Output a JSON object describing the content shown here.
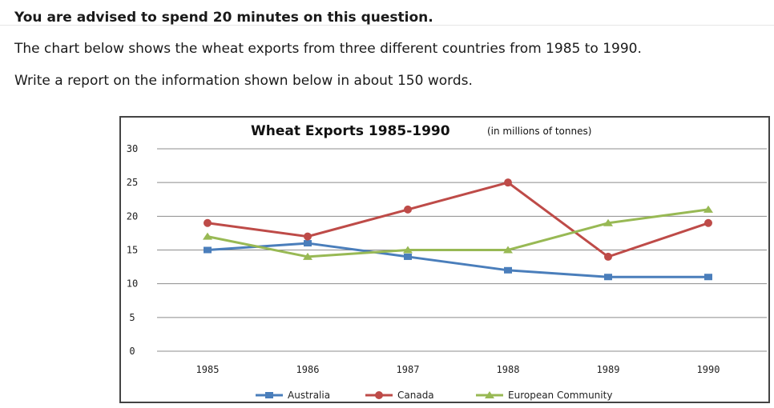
{
  "instructions": {
    "line1": "You are advised to spend 20 minutes on this question.",
    "line2": "The chart below shows the wheat exports from three different countries from 1985 to 1990.",
    "line3": "Write a report on the information shown below in about 150 words."
  },
  "chart_data": {
    "type": "line",
    "title": "Wheat Exports 1985-1990",
    "subtitle": "(in millions of tonnes)",
    "xlabel": "",
    "ylabel": "",
    "categories": [
      "1985",
      "1986",
      "1987",
      "1988",
      "1989",
      "1990"
    ],
    "yticks": [
      0,
      5,
      10,
      15,
      20,
      25,
      30
    ],
    "ylim": [
      0,
      30
    ],
    "grid": true,
    "legend_position": "bottom",
    "series": [
      {
        "name": "Australia",
        "color": "#4a7ebb",
        "marker": "square",
        "values": [
          15,
          16,
          14,
          12,
          11,
          11
        ]
      },
      {
        "name": "Canada",
        "color": "#be4b48",
        "marker": "circle",
        "values": [
          19,
          17,
          21,
          25,
          14,
          19
        ]
      },
      {
        "name": "European Community",
        "color": "#98b954",
        "marker": "triangle",
        "values": [
          17,
          14,
          15,
          15,
          19,
          21
        ]
      }
    ]
  }
}
